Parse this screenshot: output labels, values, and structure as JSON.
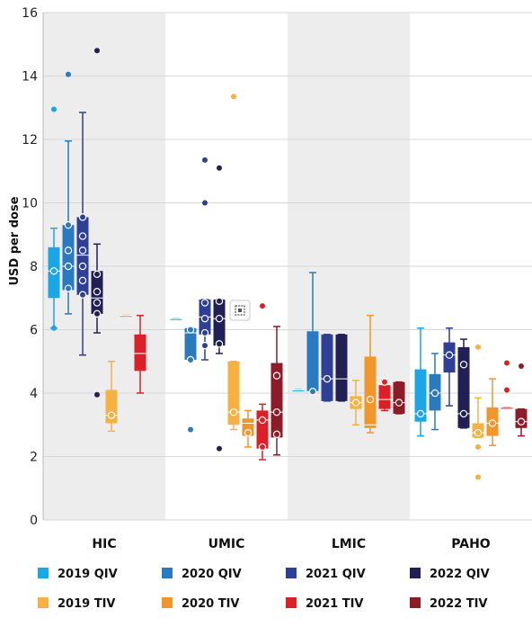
{
  "chart_data": {
    "type": "box",
    "ylabel": "USD per dose",
    "ylim": [
      0,
      16
    ],
    "yticks": [
      0,
      2,
      4,
      6,
      8,
      10,
      12,
      14,
      16
    ],
    "grid": true,
    "legend_position": "bottom",
    "categories": [
      "HIC",
      "UMIC",
      "LMIC",
      "PAHO"
    ],
    "series": [
      {
        "name": "2019 QIV",
        "color": "#1ba7e5",
        "boxes": [
          {
            "min": 6.05,
            "q1": 7.0,
            "median": 7.85,
            "q3": 8.6,
            "max": 9.2,
            "mean": 7.85,
            "points": [
              7.85
            ],
            "outliers": [
              6.05,
              12.95
            ]
          },
          {
            "min": 6.35,
            "q1": 6.35,
            "median": 6.35,
            "q3": 6.35,
            "max": 6.35,
            "mean": null,
            "points": [],
            "outliers": []
          },
          {
            "min": 4.1,
            "q1": 4.1,
            "median": 4.1,
            "q3": 4.1,
            "max": 4.1,
            "mean": null,
            "points": [],
            "outliers": []
          },
          {
            "min": 2.65,
            "q1": 3.1,
            "median": 3.35,
            "q3": 4.75,
            "max": 6.05,
            "mean": 3.35,
            "points": [
              3.35
            ],
            "outliers": []
          }
        ]
      },
      {
        "name": "2020 QIV",
        "color": "#2a7abf",
        "boxes": [
          {
            "min": 6.5,
            "q1": 7.25,
            "median": 8.0,
            "q3": 9.3,
            "max": 11.95,
            "mean": 8.0,
            "points": [
              7.3,
              8.0,
              8.5,
              9.3
            ],
            "outliers": [
              14.05
            ]
          },
          {
            "min": 5.05,
            "q1": 5.05,
            "median": 5.9,
            "q3": 6.05,
            "max": 6.05,
            "mean": 6.0,
            "points": [
              5.05,
              6.0
            ],
            "outliers": [
              2.85
            ]
          },
          {
            "min": 4.05,
            "q1": 4.05,
            "median": 4.05,
            "q3": 5.95,
            "max": 7.8,
            "mean": 4.05,
            "points": [
              4.05
            ],
            "outliers": []
          },
          {
            "min": 2.85,
            "q1": 3.45,
            "median": 4.0,
            "q3": 4.6,
            "max": 5.25,
            "mean": 4.0,
            "points": [
              4.0
            ],
            "outliers": []
          }
        ]
      },
      {
        "name": "2021 QIV",
        "color": "#2e3f95",
        "boxes": [
          {
            "min": 5.2,
            "q1": 7.1,
            "median": 8.35,
            "q3": 9.55,
            "max": 12.85,
            "mean": 8.35,
            "points": [
              7.1,
              7.55,
              8.0,
              8.5,
              8.95,
              9.55
            ],
            "outliers": []
          },
          {
            "min": 5.05,
            "q1": 5.85,
            "median": 6.4,
            "q3": 6.95,
            "max": 6.95,
            "mean": 6.35,
            "points": [
              5.5,
              5.9,
              6.35,
              6.85
            ],
            "outliers": [
              10.0,
              11.35
            ]
          },
          {
            "min": 3.75,
            "q1": 3.75,
            "median": 4.45,
            "q3": 5.85,
            "max": 5.85,
            "mean": 4.45,
            "points": [
              4.45
            ],
            "outliers": []
          },
          {
            "min": 3.6,
            "q1": 4.65,
            "median": 5.2,
            "q3": 5.6,
            "max": 6.05,
            "mean": 5.2,
            "points": [
              5.2
            ],
            "outliers": []
          }
        ]
      },
      {
        "name": "2022 QIV",
        "color": "#221f54",
        "boxes": [
          {
            "min": 5.9,
            "q1": 6.5,
            "median": 7.0,
            "q3": 7.85,
            "max": 8.7,
            "mean": 7.0,
            "points": [
              6.5,
              6.85,
              7.2,
              7.75
            ],
            "outliers": [
              3.95,
              14.8
            ]
          },
          {
            "min": 5.25,
            "q1": 5.5,
            "median": 6.35,
            "q3": 6.95,
            "max": 6.95,
            "mean": 6.35,
            "points": [
              5.55,
              6.35,
              6.9
            ],
            "outliers": [
              2.25,
              11.1
            ]
          },
          {
            "min": 3.75,
            "q1": 3.75,
            "median": 4.45,
            "q3": 5.85,
            "max": 5.85,
            "mean": null,
            "points": [],
            "outliers": []
          },
          {
            "min": 2.9,
            "q1": 2.9,
            "median": 3.35,
            "q3": 5.45,
            "max": 5.7,
            "mean": 3.35,
            "points": [
              3.35,
              4.9
            ],
            "outliers": []
          }
        ]
      },
      {
        "name": "2019 TIV",
        "color": "#f7b142",
        "boxes": [
          {
            "min": 2.8,
            "q1": 3.05,
            "median": 3.3,
            "q3": 4.1,
            "max": 5.0,
            "mean": 3.3,
            "points": [
              3.3
            ],
            "outliers": []
          },
          {
            "min": 2.85,
            "q1": 3.0,
            "median": 3.4,
            "q3": 5.0,
            "max": 5.0,
            "mean": 3.4,
            "points": [
              3.4
            ],
            "outliers": [
              13.35
            ]
          },
          {
            "min": 3.0,
            "q1": 3.5,
            "median": 3.7,
            "q3": 3.9,
            "max": 4.4,
            "mean": 3.7,
            "points": [
              3.7
            ],
            "outliers": []
          },
          {
            "min": 2.6,
            "q1": 2.6,
            "median": 2.75,
            "q3": 3.05,
            "max": 3.85,
            "mean": 2.75,
            "points": [
              2.75
            ],
            "outliers": [
              1.35,
              5.45,
              2.3
            ]
          }
        ]
      },
      {
        "name": "2020 TIV",
        "color": "#f0962a",
        "boxes": [
          {
            "min": 6.45,
            "q1": 6.45,
            "median": 6.45,
            "q3": 6.45,
            "max": 6.45,
            "mean": null,
            "points": [],
            "outliers": []
          },
          {
            "min": 2.3,
            "q1": 2.65,
            "median": 3.05,
            "q3": 3.2,
            "max": 3.45,
            "mean": 2.75,
            "points": [
              2.75
            ],
            "outliers": []
          },
          {
            "min": 2.75,
            "q1": 2.9,
            "median": 3.0,
            "q3": 5.15,
            "max": 6.45,
            "mean": 3.8,
            "points": [
              3.8
            ],
            "outliers": []
          },
          {
            "min": 2.35,
            "q1": 2.65,
            "median": 3.05,
            "q3": 3.55,
            "max": 4.45,
            "mean": 3.05,
            "points": [
              3.05
            ],
            "outliers": []
          }
        ]
      },
      {
        "name": "2021 TIV",
        "color": "#db2027",
        "boxes": [
          {
            "min": 4.0,
            "q1": 4.7,
            "median": 5.25,
            "q3": 5.85,
            "max": 6.45,
            "mean": null,
            "points": [],
            "outliers": []
          },
          {
            "min": 1.9,
            "q1": 2.25,
            "median": 3.15,
            "q3": 3.45,
            "max": 3.65,
            "mean": 3.15,
            "points": [
              2.3,
              3.15
            ],
            "outliers": [
              6.75
            ]
          },
          {
            "min": 3.45,
            "q1": 3.5,
            "median": 3.8,
            "q3": 4.25,
            "max": 4.4,
            "mean": 3.95,
            "points": [
              4.35
            ],
            "outliers": []
          },
          {
            "min": 3.55,
            "q1": 3.55,
            "median": 3.55,
            "q3": 3.55,
            "max": 3.55,
            "mean": null,
            "points": [],
            "outliers": [
              4.95,
              4.1
            ]
          }
        ]
      },
      {
        "name": "2022 TIV",
        "color": "#8e1c28",
        "boxes": [
          {
            "min": null,
            "q1": null,
            "median": null,
            "q3": null,
            "max": null,
            "mean": null,
            "points": [],
            "outliers": []
          },
          {
            "min": 2.05,
            "q1": 2.6,
            "median": 3.4,
            "q3": 4.95,
            "max": 6.1,
            "mean": 3.4,
            "points": [
              2.7,
              3.4,
              4.55
            ],
            "outliers": []
          },
          {
            "min": 3.35,
            "q1": 3.35,
            "median": 3.7,
            "q3": 4.35,
            "max": 4.35,
            "mean": 3.7,
            "points": [
              3.7
            ],
            "outliers": []
          },
          {
            "min": 2.65,
            "q1": 2.9,
            "median": 3.1,
            "q3": 3.5,
            "max": 3.5,
            "mean": 3.1,
            "points": [
              3.1
            ],
            "outliers": [
              4.85
            ]
          }
        ]
      }
    ]
  },
  "icon": {
    "name": "expand-icon"
  }
}
